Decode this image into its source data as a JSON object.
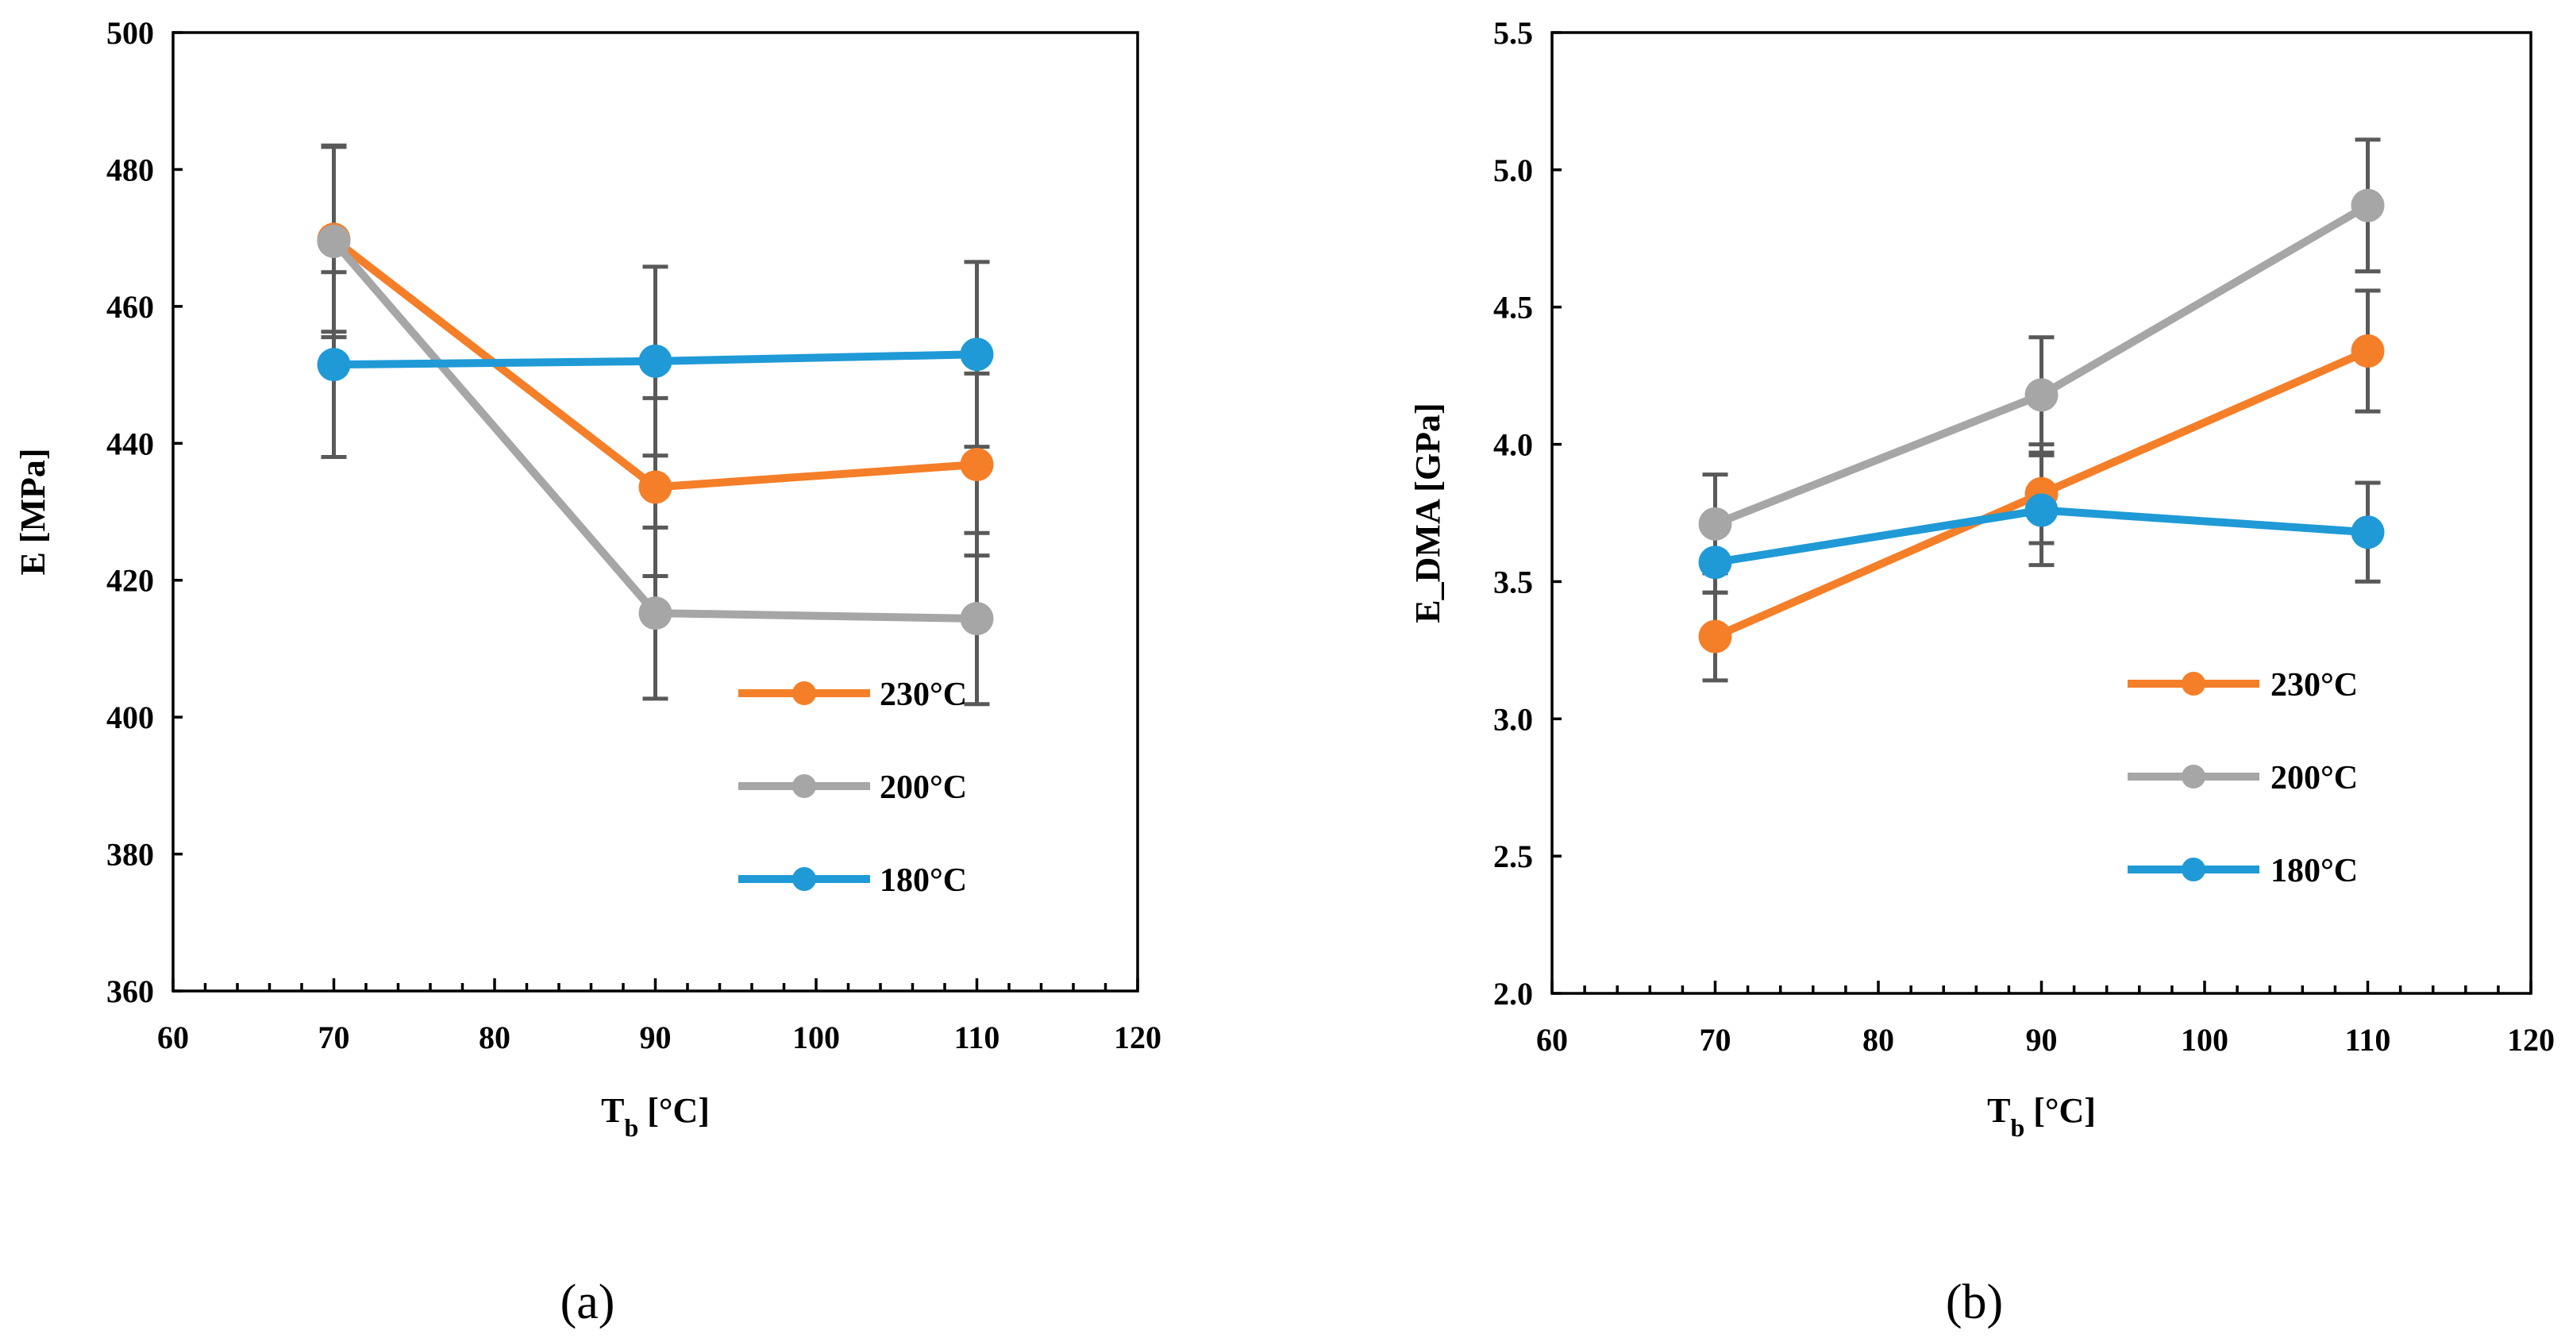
{
  "chart_data": [
    {
      "type": "line",
      "panel_label": "(a)",
      "xlabel": "T",
      "xlabel_sub": "b",
      "xlabel_unit": " [°C]",
      "ylabel": "E [MPa]",
      "xlim": [
        60,
        120
      ],
      "ylim": [
        360,
        500
      ],
      "xticks": [
        60,
        70,
        80,
        90,
        100,
        110,
        120
      ],
      "xtick_labels": [
        "60",
        "70",
        "80",
        "90",
        "100",
        "110",
        "120"
      ],
      "yticks": [
        360,
        380,
        400,
        420,
        440,
        460,
        480,
        500
      ],
      "ytick_labels": [
        "360",
        "380",
        "400",
        "420",
        "440",
        "460",
        "480",
        "500"
      ],
      "x_minor_step": 2,
      "grid": false,
      "legend_position": "bottom-right",
      "x": [
        70,
        90,
        110
      ],
      "series": [
        {
          "name": "230°C",
          "color": "#f57e28",
          "values": [
            469.8,
            433.6,
            436.9
          ],
          "error": [
            13.5,
            13.0,
            13.3
          ]
        },
        {
          "name": "200°C",
          "color": "#a6a6a6",
          "values": [
            469.5,
            415.2,
            414.4
          ],
          "error": [
            14.0,
            12.5,
            12.5
          ]
        },
        {
          "name": "180°C",
          "color": "#1f9ad6",
          "values": [
            451.5,
            452.0,
            453.0
          ],
          "error": [
            13.5,
            13.8,
            13.5
          ]
        }
      ]
    },
    {
      "type": "line",
      "panel_label": "(b)",
      "xlabel": "T",
      "xlabel_sub": "b",
      "xlabel_unit": " [°C]",
      "ylabel": "E_DMA [GPa]",
      "xlim": [
        60,
        120
      ],
      "ylim": [
        2.0,
        5.5
      ],
      "xticks": [
        60,
        70,
        80,
        90,
        100,
        110,
        120
      ],
      "xtick_labels": [
        "60",
        "70",
        "80",
        "90",
        "100",
        "110",
        "120"
      ],
      "yticks": [
        2.0,
        2.5,
        3.0,
        3.5,
        4.0,
        4.5,
        5.0,
        5.5
      ],
      "ytick_labels": [
        "2.0",
        "2.5",
        "3.0",
        "3.5",
        "4.0",
        "4.5",
        "5.0",
        "5.5"
      ],
      "x_minor_step": 2,
      "grid": false,
      "legend_position": "bottom-right",
      "x": [
        70,
        90,
        110
      ],
      "series": [
        {
          "name": "230°C",
          "color": "#f57e28",
          "values": [
            3.3,
            3.82,
            4.34
          ],
          "error": [
            0.16,
            0.18,
            0.22
          ]
        },
        {
          "name": "200°C",
          "color": "#a6a6a6",
          "values": [
            3.71,
            4.18,
            4.87
          ],
          "error": [
            0.18,
            0.21,
            0.24
          ]
        },
        {
          "name": "180°C",
          "color": "#1f9ad6",
          "values": [
            3.57,
            3.76,
            3.68
          ],
          "error": [
            0.11,
            0.2,
            0.18
          ]
        }
      ]
    }
  ]
}
